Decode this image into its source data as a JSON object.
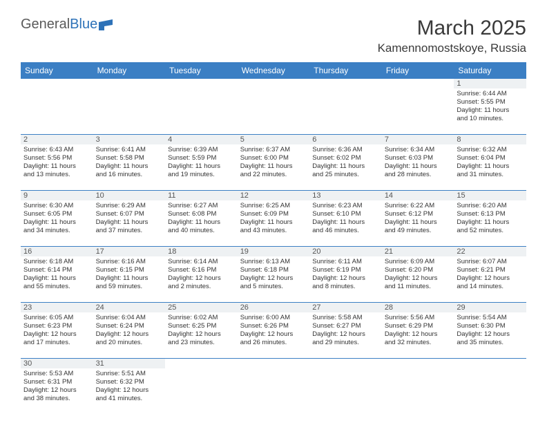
{
  "logo": {
    "text1": "General",
    "text2": "Blue"
  },
  "title": "March 2025",
  "location": "Kamennomostskoye, Russia",
  "colors": {
    "header_bg": "#3b7fc4",
    "header_text": "#ffffff",
    "daynum_bg": "#eef1f3",
    "border": "#3b7fc4"
  },
  "weekdays": [
    "Sunday",
    "Monday",
    "Tuesday",
    "Wednesday",
    "Thursday",
    "Friday",
    "Saturday"
  ],
  "weeks": [
    [
      null,
      null,
      null,
      null,
      null,
      null,
      {
        "d": "1",
        "sr": "Sunrise: 6:44 AM",
        "ss": "Sunset: 5:55 PM",
        "dl1": "Daylight: 11 hours",
        "dl2": "and 10 minutes."
      }
    ],
    [
      {
        "d": "2",
        "sr": "Sunrise: 6:43 AM",
        "ss": "Sunset: 5:56 PM",
        "dl1": "Daylight: 11 hours",
        "dl2": "and 13 minutes."
      },
      {
        "d": "3",
        "sr": "Sunrise: 6:41 AM",
        "ss": "Sunset: 5:58 PM",
        "dl1": "Daylight: 11 hours",
        "dl2": "and 16 minutes."
      },
      {
        "d": "4",
        "sr": "Sunrise: 6:39 AM",
        "ss": "Sunset: 5:59 PM",
        "dl1": "Daylight: 11 hours",
        "dl2": "and 19 minutes."
      },
      {
        "d": "5",
        "sr": "Sunrise: 6:37 AM",
        "ss": "Sunset: 6:00 PM",
        "dl1": "Daylight: 11 hours",
        "dl2": "and 22 minutes."
      },
      {
        "d": "6",
        "sr": "Sunrise: 6:36 AM",
        "ss": "Sunset: 6:02 PM",
        "dl1": "Daylight: 11 hours",
        "dl2": "and 25 minutes."
      },
      {
        "d": "7",
        "sr": "Sunrise: 6:34 AM",
        "ss": "Sunset: 6:03 PM",
        "dl1": "Daylight: 11 hours",
        "dl2": "and 28 minutes."
      },
      {
        "d": "8",
        "sr": "Sunrise: 6:32 AM",
        "ss": "Sunset: 6:04 PM",
        "dl1": "Daylight: 11 hours",
        "dl2": "and 31 minutes."
      }
    ],
    [
      {
        "d": "9",
        "sr": "Sunrise: 6:30 AM",
        "ss": "Sunset: 6:05 PM",
        "dl1": "Daylight: 11 hours",
        "dl2": "and 34 minutes."
      },
      {
        "d": "10",
        "sr": "Sunrise: 6:29 AM",
        "ss": "Sunset: 6:07 PM",
        "dl1": "Daylight: 11 hours",
        "dl2": "and 37 minutes."
      },
      {
        "d": "11",
        "sr": "Sunrise: 6:27 AM",
        "ss": "Sunset: 6:08 PM",
        "dl1": "Daylight: 11 hours",
        "dl2": "and 40 minutes."
      },
      {
        "d": "12",
        "sr": "Sunrise: 6:25 AM",
        "ss": "Sunset: 6:09 PM",
        "dl1": "Daylight: 11 hours",
        "dl2": "and 43 minutes."
      },
      {
        "d": "13",
        "sr": "Sunrise: 6:23 AM",
        "ss": "Sunset: 6:10 PM",
        "dl1": "Daylight: 11 hours",
        "dl2": "and 46 minutes."
      },
      {
        "d": "14",
        "sr": "Sunrise: 6:22 AM",
        "ss": "Sunset: 6:12 PM",
        "dl1": "Daylight: 11 hours",
        "dl2": "and 49 minutes."
      },
      {
        "d": "15",
        "sr": "Sunrise: 6:20 AM",
        "ss": "Sunset: 6:13 PM",
        "dl1": "Daylight: 11 hours",
        "dl2": "and 52 minutes."
      }
    ],
    [
      {
        "d": "16",
        "sr": "Sunrise: 6:18 AM",
        "ss": "Sunset: 6:14 PM",
        "dl1": "Daylight: 11 hours",
        "dl2": "and 55 minutes."
      },
      {
        "d": "17",
        "sr": "Sunrise: 6:16 AM",
        "ss": "Sunset: 6:15 PM",
        "dl1": "Daylight: 11 hours",
        "dl2": "and 59 minutes."
      },
      {
        "d": "18",
        "sr": "Sunrise: 6:14 AM",
        "ss": "Sunset: 6:16 PM",
        "dl1": "Daylight: 12 hours",
        "dl2": "and 2 minutes."
      },
      {
        "d": "19",
        "sr": "Sunrise: 6:13 AM",
        "ss": "Sunset: 6:18 PM",
        "dl1": "Daylight: 12 hours",
        "dl2": "and 5 minutes."
      },
      {
        "d": "20",
        "sr": "Sunrise: 6:11 AM",
        "ss": "Sunset: 6:19 PM",
        "dl1": "Daylight: 12 hours",
        "dl2": "and 8 minutes."
      },
      {
        "d": "21",
        "sr": "Sunrise: 6:09 AM",
        "ss": "Sunset: 6:20 PM",
        "dl1": "Daylight: 12 hours",
        "dl2": "and 11 minutes."
      },
      {
        "d": "22",
        "sr": "Sunrise: 6:07 AM",
        "ss": "Sunset: 6:21 PM",
        "dl1": "Daylight: 12 hours",
        "dl2": "and 14 minutes."
      }
    ],
    [
      {
        "d": "23",
        "sr": "Sunrise: 6:05 AM",
        "ss": "Sunset: 6:23 PM",
        "dl1": "Daylight: 12 hours",
        "dl2": "and 17 minutes."
      },
      {
        "d": "24",
        "sr": "Sunrise: 6:04 AM",
        "ss": "Sunset: 6:24 PM",
        "dl1": "Daylight: 12 hours",
        "dl2": "and 20 minutes."
      },
      {
        "d": "25",
        "sr": "Sunrise: 6:02 AM",
        "ss": "Sunset: 6:25 PM",
        "dl1": "Daylight: 12 hours",
        "dl2": "and 23 minutes."
      },
      {
        "d": "26",
        "sr": "Sunrise: 6:00 AM",
        "ss": "Sunset: 6:26 PM",
        "dl1": "Daylight: 12 hours",
        "dl2": "and 26 minutes."
      },
      {
        "d": "27",
        "sr": "Sunrise: 5:58 AM",
        "ss": "Sunset: 6:27 PM",
        "dl1": "Daylight: 12 hours",
        "dl2": "and 29 minutes."
      },
      {
        "d": "28",
        "sr": "Sunrise: 5:56 AM",
        "ss": "Sunset: 6:29 PM",
        "dl1": "Daylight: 12 hours",
        "dl2": "and 32 minutes."
      },
      {
        "d": "29",
        "sr": "Sunrise: 5:54 AM",
        "ss": "Sunset: 6:30 PM",
        "dl1": "Daylight: 12 hours",
        "dl2": "and 35 minutes."
      }
    ],
    [
      {
        "d": "30",
        "sr": "Sunrise: 5:53 AM",
        "ss": "Sunset: 6:31 PM",
        "dl1": "Daylight: 12 hours",
        "dl2": "and 38 minutes."
      },
      {
        "d": "31",
        "sr": "Sunrise: 5:51 AM",
        "ss": "Sunset: 6:32 PM",
        "dl1": "Daylight: 12 hours",
        "dl2": "and 41 minutes."
      },
      null,
      null,
      null,
      null,
      null
    ]
  ]
}
